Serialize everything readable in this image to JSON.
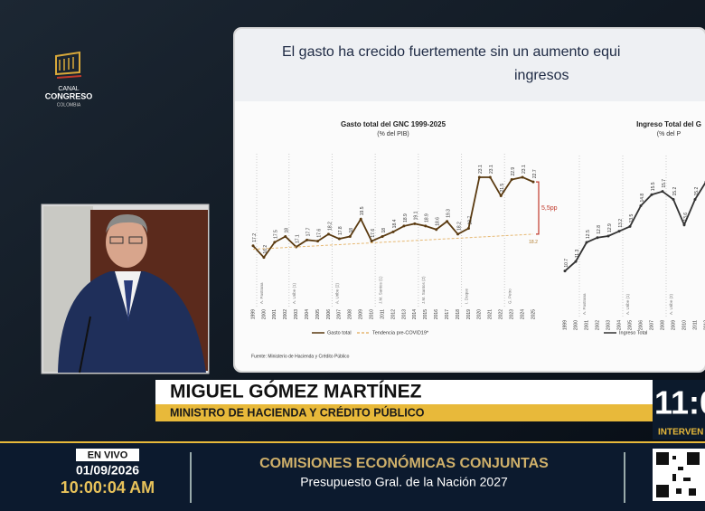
{
  "logo": {
    "line1": "CANAL",
    "line2": "CONGRESO",
    "line3": "COLOMBIA"
  },
  "slide": {
    "title_line1": "El gasto ha crecido fuertemente sin un aumento equi",
    "title_line2": "ingresos",
    "source": "Fuente: Ministerio de Hacienda y Crédito Público"
  },
  "chart_data": [
    {
      "type": "line",
      "title": "Gasto total del GNC 1999-2025",
      "subtitle": "(% del PIB)",
      "x": [
        1999,
        2000,
        2001,
        2002,
        2003,
        2004,
        2005,
        2006,
        2007,
        2008,
        2009,
        2010,
        2011,
        2012,
        2013,
        2014,
        2015,
        2016,
        2017,
        2018,
        2019,
        2020,
        2021,
        2022,
        2023,
        2024,
        2025
      ],
      "xlim": [
        1999,
        2025
      ],
      "ylim": [
        15,
        24.5
      ],
      "series": [
        {
          "name": "Gasto total",
          "color": "#5a3a10",
          "values": [
            17.2,
            16.2,
            17.5,
            18.0,
            17.1,
            17.7,
            17.6,
            18.2,
            17.8,
            18.0,
            19.5,
            17.6,
            18.0,
            18.4,
            18.9,
            19.1,
            18.9,
            18.6,
            19.3,
            18.2,
            18.7,
            23.1,
            23.1,
            21.5,
            22.9,
            23.1,
            22.7
          ]
        },
        {
          "name": "Tendencia pre-COVID19*",
          "color": "#e6b872",
          "dashed": true,
          "x": [
            1999,
            2025
          ],
          "values": [
            16.9,
            18.2
          ]
        }
      ],
      "annotation": "5,5pp",
      "periods": [
        {
          "label": "A. Pastrana",
          "x": 1999
        },
        {
          "label": "A. Uribe (1)",
          "x": 2002
        },
        {
          "label": "A. Uribe (2)",
          "x": 2006
        },
        {
          "label": "J.M. Santos (1)",
          "x": 2010
        },
        {
          "label": "J.M. Santos (2)",
          "x": 2014
        },
        {
          "label": "I. Duque",
          "x": 2018
        },
        {
          "label": "G. Petro",
          "x": 2022
        }
      ]
    },
    {
      "type": "line",
      "title": "Ingreso Total del G",
      "subtitle": "(% del P",
      "x": [
        1999,
        2000,
        2001,
        2002,
        2003,
        2004,
        2005,
        2006,
        2007,
        2008,
        2009,
        2010,
        2011,
        2012
      ],
      "xlim": [
        1999,
        2012
      ],
      "ylim": [
        10,
        17.5
      ],
      "series": [
        {
          "name": "Ingreso Total",
          "color": "#333333",
          "values": [
            10.7,
            11.3,
            12.5,
            12.8,
            12.9,
            13.2,
            13.5,
            14.8,
            15.5,
            15.7,
            15.2,
            13.6,
            15.2,
            16.3
          ]
        }
      ],
      "periods": [
        {
          "label": "A. Pastrana",
          "x": 2000
        },
        {
          "label": "A. Uribe (1)",
          "x": 2004
        },
        {
          "label": "A. Uribe (2)",
          "x": 2008
        }
      ]
    }
  ],
  "speaker": {
    "name": "MIGUEL GÓMEZ MARTÍNEZ",
    "role": "MINISTRO DE HACIENDA Y CRÉDITO PÚBLICO"
  },
  "clock": {
    "time": "11:0",
    "label": "INTERVEN"
  },
  "ticker": {
    "badge": "EN VIVO",
    "date": "01/09/2026",
    "time": "10:00:04 AM",
    "headline": "COMISIONES ECONÓMICAS CONJUNTAS",
    "subheadline": "Presupuesto Gral. de la Nación 2027"
  }
}
